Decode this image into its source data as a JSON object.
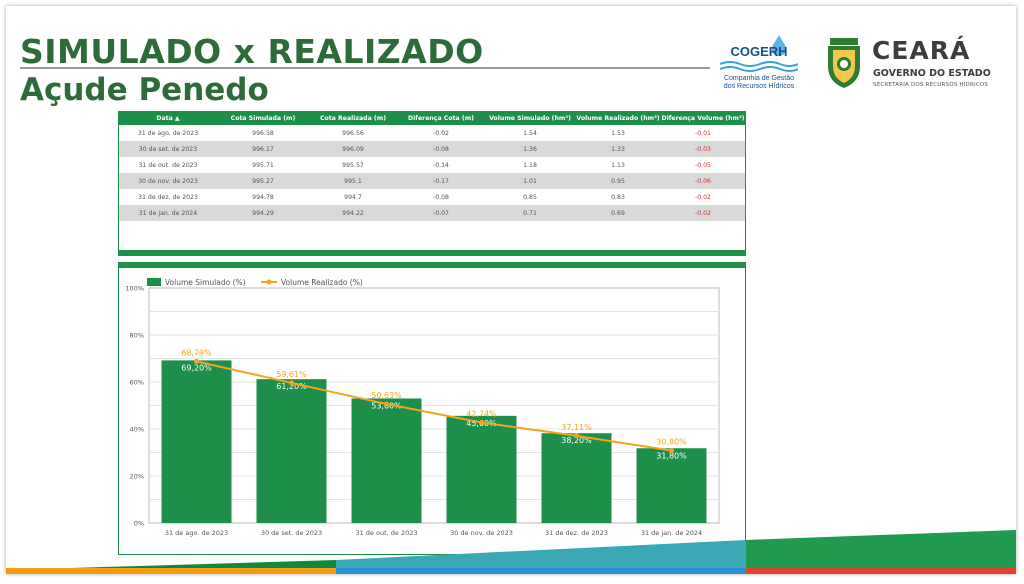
{
  "header": {
    "title_line1": "SIMULADO x REALIZADO",
    "title_line2": "Açude Penedo"
  },
  "logos": {
    "cogerh_name": "COGERH",
    "cogerh_sub1": "Companhia de Gestão",
    "cogerh_sub2": "dos Recursos Hídricos",
    "ceara_name": "CEARÁ",
    "ceara_gov": "GOVERNO DO ESTADO",
    "ceara_sec": "SECRETARIA DOS RECURSOS HÍDRICOS"
  },
  "table": {
    "headers": [
      "Data ▲",
      "Cota Simulada (m)",
      "Cota Realizada (m)",
      "Diferença Cota (m)",
      "Volume Simulado (hm³)",
      "Volume Realizado (hm³)",
      "Diferença Volume (hm³)"
    ],
    "rows": [
      [
        "31 de ago. de 2023",
        "996.58",
        "996.56",
        "-0.02",
        "1.54",
        "1.53",
        "-0.01"
      ],
      [
        "30 de set. de 2023",
        "996.17",
        "996.09",
        "-0.08",
        "1.36",
        "1.33",
        "-0.03"
      ],
      [
        "31 de out. de 2023",
        "995.71",
        "995.57",
        "-0.14",
        "1.18",
        "1.13",
        "-0.05"
      ],
      [
        "30 de nov. de 2023",
        "995.27",
        "995.1",
        "-0.17",
        "1.01",
        "0.95",
        "-0.06"
      ],
      [
        "31 de dez. de 2023",
        "994.78",
        "994.7",
        "-0.08",
        "0.85",
        "0.83",
        "-0.02"
      ],
      [
        "31 de jan. de 2024",
        "994.29",
        "994.22",
        "-0.07",
        "0.71",
        "0.69",
        "-0.02"
      ]
    ]
  },
  "chart_data": {
    "type": "bar",
    "categories": [
      "31 de ago. de 2023",
      "30 de set. de 2023",
      "31 de out. de 2023",
      "30 de nov. de 2023",
      "31 de dez. de 2023",
      "31 de jan. de 2024"
    ],
    "series": [
      {
        "name": "Volume Simulado (%)",
        "type": "bar",
        "color": "#1e8f4b",
        "values": [
          69.2,
          61.2,
          53.0,
          45.6,
          38.2,
          31.8
        ],
        "labels": [
          "69,20%",
          "61,20%",
          "53,00%",
          "45,60%",
          "38,20%",
          "31,80%"
        ]
      },
      {
        "name": "Volume Realizado (%)",
        "type": "line",
        "color": "#f5a31a",
        "values": [
          68.79,
          59.61,
          50.63,
          42.74,
          37.11,
          30.8
        ],
        "labels": [
          "68,79%",
          "59,61%",
          "50,63%",
          "42,74%",
          "37,11%",
          "30,80%"
        ]
      }
    ],
    "yticks": [
      "0%",
      "20%",
      "40%",
      "60%",
      "80%",
      "100%"
    ],
    "ylim": [
      0,
      100
    ],
    "grid": true,
    "legend_position": "top-left"
  }
}
